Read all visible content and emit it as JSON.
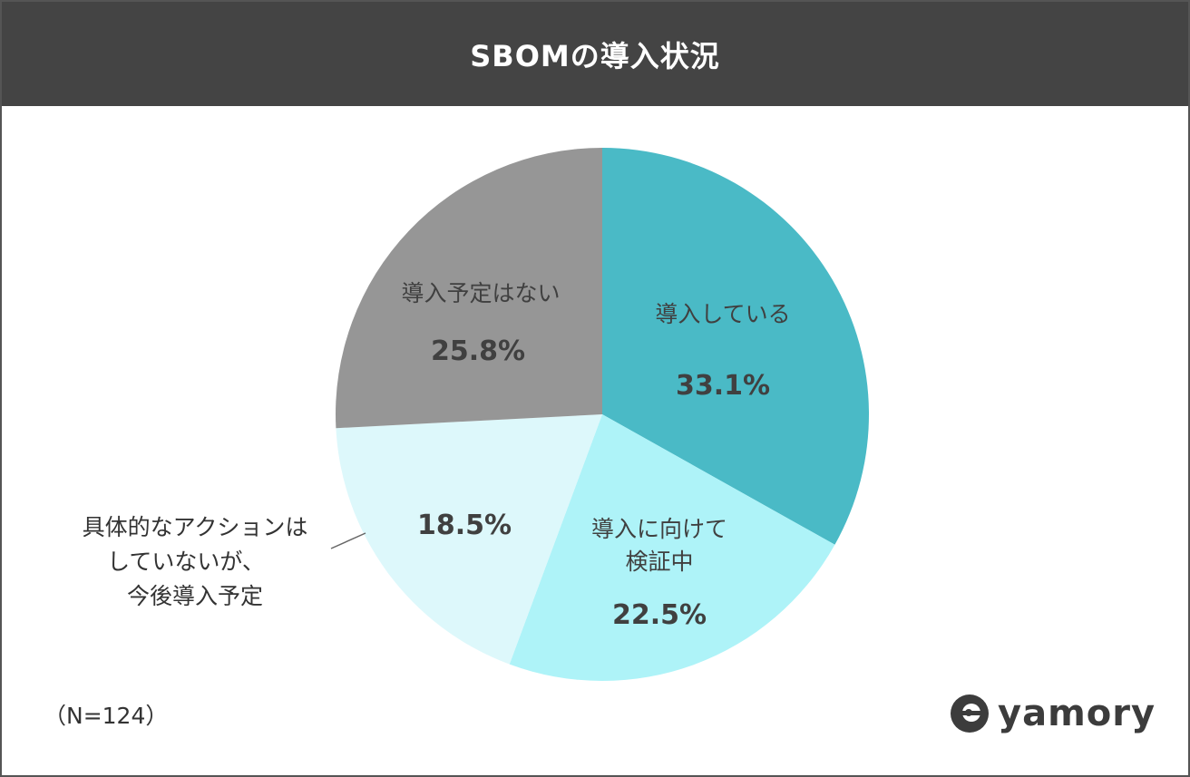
{
  "title": "SBOMの導入状況",
  "note": "（N=124）",
  "logo": {
    "text": "yamory",
    "icon": "yamory-logo-icon"
  },
  "colors": {
    "title_bg": "#444444",
    "slice_0": "#4ABAC6",
    "slice_1": "#AEF3F8",
    "slice_2": "#DDF8FB",
    "slice_3": "#969696"
  },
  "chart_data": {
    "type": "pie",
    "title": "SBOMの導入状況",
    "slices": [
      {
        "label": "導入している",
        "label_lines": [
          "導入している"
        ],
        "value": 33.1,
        "value_label": "33.1%"
      },
      {
        "label": "導入に向けて検証中",
        "label_lines": [
          "導入に向けて",
          "検証中"
        ],
        "value": 22.5,
        "value_label": "22.5%"
      },
      {
        "label": "具体的なアクションはしていないが、今後導入予定",
        "label_lines": [
          "具体的なアクションは",
          "していないが、",
          "今後導入予定"
        ],
        "value": 18.5,
        "value_label": "18.5%"
      },
      {
        "label": "導入予定はない",
        "label_lines": [
          "導入予定はない"
        ],
        "value": 25.8,
        "value_label": "25.8%"
      }
    ],
    "start": "12 o'clock",
    "direction": "clockwise",
    "legend": "none"
  }
}
